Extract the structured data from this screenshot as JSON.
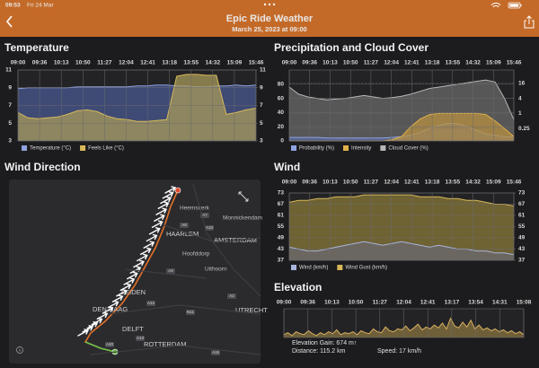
{
  "status_bar": {
    "time": "09:53",
    "date": "Fri 24 Mar"
  },
  "header": {
    "title": "Epic Ride Weather",
    "subtitle": "March 25, 2023 at 09:00"
  },
  "map": {
    "title": "Wind Direction",
    "labels": [
      "Heemskerk",
      "Monnickendam",
      "HAARLEM",
      "AMSTERDAM",
      "Hoofddorp",
      "Uithoorn",
      "LEIDEN",
      "DEN HAAG",
      "UTRECHT",
      "DELFT",
      "ROTTERDAM"
    ],
    "roads": [
      "A7",
      "A9",
      "A10",
      "A4",
      "A12",
      "N11",
      "A2",
      "A13",
      "A20",
      "A15"
    ]
  },
  "chart_data": [
    {
      "type": "area",
      "title": "Temperature",
      "xticks": [
        "09:00",
        "09:36",
        "10:13",
        "10:50",
        "11:27",
        "12:04",
        "12:41",
        "13:18",
        "13:55",
        "14:32",
        "15:09",
        "15:46"
      ],
      "ylim": [
        3,
        11
      ],
      "yticks": [
        11,
        9,
        7,
        5,
        3
      ],
      "y2lim": [
        3,
        11
      ],
      "y2ticks": [
        11,
        9,
        7,
        5,
        3
      ],
      "grid": true,
      "series": [
        {
          "name": "Temperature (°C)",
          "color": "#8ea2e0",
          "fill": "#4a5a90",
          "values": [
            8.9,
            9.0,
            9.0,
            9.0,
            9.0,
            9.0,
            9.1,
            9.1,
            9.1,
            9.1,
            9.1,
            9.1,
            9.2,
            9.2,
            9.3,
            9.3,
            9.2,
            9.2,
            9.1,
            9.1,
            9.2,
            9.2,
            9.3,
            9.2,
            9.3
          ]
        },
        {
          "name": "Feels Like (°C)",
          "color": "#d8b85a",
          "fill": "#a89a5a",
          "values": [
            6.2,
            5.6,
            5.5,
            5.6,
            5.7,
            6.0,
            6.4,
            6.5,
            6.3,
            5.8,
            5.5,
            5.4,
            5.2,
            5.2,
            5.3,
            5.4,
            10.3,
            10.5,
            10.5,
            10.4,
            10.4,
            6.0,
            6.2,
            6.5,
            6.7
          ]
        }
      ]
    },
    {
      "type": "area",
      "title": "Precipitation and Cloud Cover",
      "xticks": [
        "09:00",
        "09:36",
        "10:13",
        "10:50",
        "11:27",
        "12:04",
        "12:41",
        "13:18",
        "13:55",
        "14:32",
        "15:09",
        "15:46"
      ],
      "ylim": [
        0,
        100
      ],
      "yticks": [
        80,
        60,
        40,
        20,
        0
      ],
      "y2lim": [
        0.08,
        54
      ],
      "y2ticks": [
        16,
        4,
        1,
        0.25
      ],
      "y2log": true,
      "grid": true,
      "series": [
        {
          "name": "Cloud Cover (%)",
          "color": "#b8b8b8",
          "fill": "#6a6a6a",
          "values": [
            76,
            66,
            62,
            60,
            58,
            59,
            60,
            62,
            64,
            62,
            60,
            61,
            63,
            66,
            70,
            74,
            76,
            78,
            80,
            82,
            84,
            86,
            83,
            60,
            30
          ]
        },
        {
          "name": "Probability (%)",
          "color": "#8ea2e0",
          "fill": "#5a6aa0",
          "values": [
            5,
            5,
            5,
            5,
            4,
            4,
            4,
            4,
            4,
            4,
            4,
            5,
            6,
            8,
            12,
            18,
            22,
            25,
            24,
            20,
            15,
            10,
            8,
            6,
            5
          ]
        },
        {
          "name": "Intensity",
          "color": "#e0b04a",
          "fill": "#b89040",
          "axis": "y2",
          "values": [
            0.08,
            0.08,
            0.08,
            0.08,
            0.08,
            0.08,
            0.08,
            0.08,
            0.08,
            0.08,
            0.08,
            0.09,
            0.12,
            0.3,
            0.6,
            0.9,
            1,
            1,
            1,
            1,
            1,
            0.9,
            0.5,
            0.25,
            0.12
          ]
        }
      ],
      "legend_order": [
        1,
        2,
        0
      ]
    },
    {
      "type": "area",
      "title": "Wind",
      "xticks": [
        "09:00",
        "09:36",
        "10:13",
        "10:50",
        "11:27",
        "12:04",
        "12:41",
        "13:18",
        "13:55",
        "14:32",
        "15:09",
        "15:46"
      ],
      "ylim": [
        37,
        73
      ],
      "yticks": [
        73,
        67,
        61,
        55,
        49,
        43,
        37
      ],
      "y2lim": [
        37,
        73
      ],
      "y2ticks": [
        73,
        67,
        61,
        55,
        49,
        43,
        37
      ],
      "grid": true,
      "series": [
        {
          "name": "Wind Gust (km/h)",
          "color": "#d8b85a",
          "fill": "#8a7838",
          "values": [
            68,
            69,
            69,
            70,
            70,
            71,
            71,
            71,
            72,
            72,
            72,
            72,
            72,
            72,
            71,
            71,
            71,
            70,
            70,
            69,
            69,
            68,
            67,
            67,
            66
          ]
        },
        {
          "name": "Wind (km/h)",
          "color": "#a8b4dc",
          "fill": "#6a6a70",
          "values": [
            44,
            43,
            42,
            42,
            43,
            44,
            45,
            46,
            47,
            46,
            45,
            46,
            47,
            46,
            45,
            44,
            45,
            44,
            43,
            43,
            42,
            42,
            41,
            41,
            40
          ]
        }
      ],
      "legend_order": [
        1,
        0
      ]
    },
    {
      "type": "area",
      "title": "Elevation",
      "xticks": [
        "09:00",
        "09:36",
        "10:13",
        "10:50",
        "11:27",
        "12:04",
        "12:41",
        "13:17",
        "13:54",
        "14:31",
        "15:08"
      ],
      "ylim": [
        0,
        30
      ],
      "grid": true,
      "series": [
        {
          "name": "Elevation",
          "color": "#d8b060",
          "fill": "#8a7440",
          "values": [
            3,
            5,
            2,
            6,
            4,
            3,
            7,
            4,
            2,
            5,
            3,
            6,
            4,
            8,
            3,
            5,
            4,
            6,
            3,
            7,
            5,
            4,
            9,
            6,
            5,
            11,
            7,
            6,
            9,
            8,
            12,
            7,
            10,
            14,
            8,
            11,
            9,
            13,
            10,
            15,
            9,
            20,
            12,
            10,
            16,
            11,
            18,
            9,
            13,
            8,
            10,
            7,
            9,
            6,
            8,
            5,
            7,
            4,
            6,
            3
          ]
        }
      ],
      "annotations": [
        "Elevation Gain: 674 m↑",
        "Distance: 115.2 km",
        "Speed: 17 km/h"
      ]
    }
  ]
}
